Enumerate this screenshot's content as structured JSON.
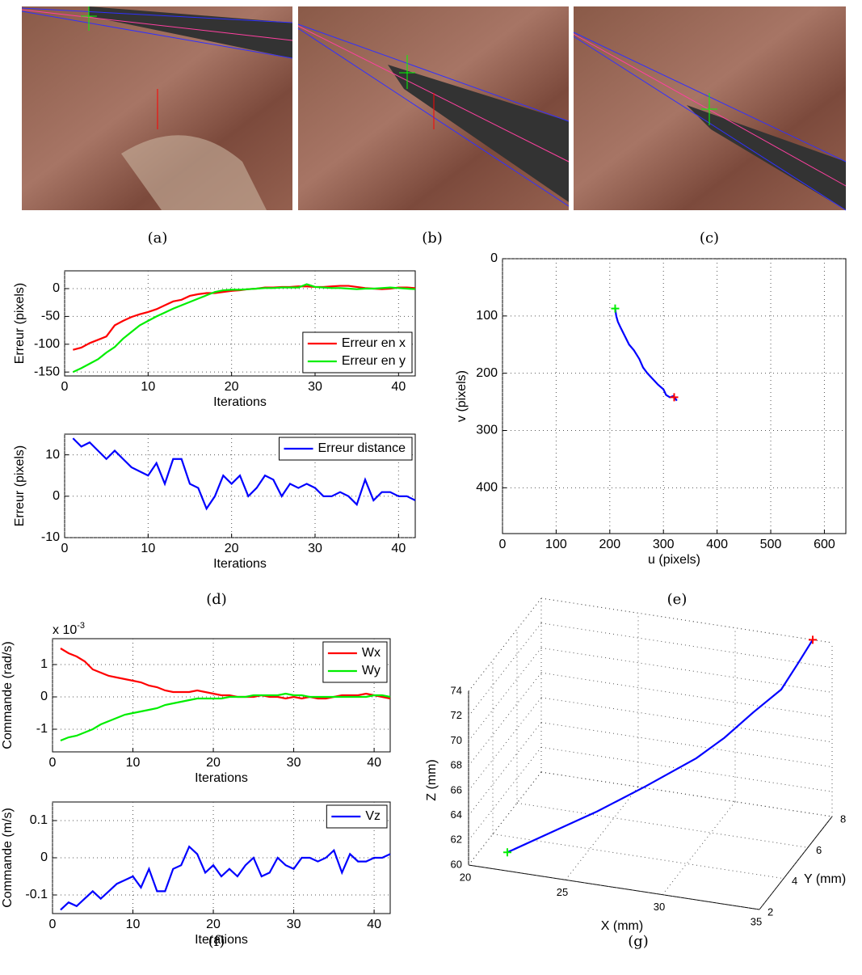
{
  "captions": [
    "(a)",
    "(b)",
    "(c)",
    "(d)",
    "(e)",
    "(f)",
    "(g)"
  ],
  "chart_data": [
    {
      "type": "line",
      "xlabel": "Iterations",
      "ylabel": "Erreur (pixels)",
      "grid": true,
      "legend": "lower right",
      "xlim": [
        0,
        42
      ],
      "ylim": [
        -157,
        32
      ],
      "xticks": [
        0,
        10,
        20,
        30,
        40
      ],
      "yticks": [
        -150,
        -100,
        -50,
        0
      ],
      "x": [
        1,
        2,
        3,
        4,
        5,
        6,
        7,
        8,
        9,
        10,
        11,
        12,
        13,
        14,
        15,
        16,
        17,
        18,
        19,
        20,
        21,
        22,
        23,
        24,
        25,
        26,
        27,
        28,
        29,
        30,
        31,
        32,
        33,
        34,
        35,
        36,
        37,
        38,
        39,
        40,
        41,
        42
      ],
      "series": [
        {
          "name": "Erreur en x",
          "color": "#ff0000",
          "values": [
            -110,
            -106,
            -98,
            -92,
            -86,
            -66,
            -58,
            -51,
            -46,
            -42,
            -37,
            -30,
            -23,
            -20,
            -13,
            -10,
            -8,
            -8,
            -6,
            -4,
            -3,
            -1,
            0,
            2,
            2,
            3,
            3,
            4,
            4,
            3,
            3,
            4,
            5,
            5,
            3,
            1,
            0,
            -1,
            0,
            2,
            2,
            1
          ]
        },
        {
          "name": "Erreur en y",
          "color": "#00ee00",
          "values": [
            -150,
            -143,
            -135,
            -127,
            -115,
            -105,
            -90,
            -78,
            -66,
            -58,
            -50,
            -43,
            -36,
            -30,
            -24,
            -18,
            -12,
            -6,
            -3,
            -2,
            -2,
            -1,
            0,
            1,
            1,
            2,
            2,
            2,
            8,
            3,
            2,
            1,
            1,
            0,
            -1,
            0,
            0,
            1,
            2,
            1,
            0,
            -1
          ]
        }
      ]
    },
    {
      "type": "line",
      "xlabel": "Iterations",
      "ylabel": "Erreur (pixels)",
      "grid": true,
      "legend": "upper right",
      "xlim": [
        0,
        42
      ],
      "ylim": [
        -10,
        15
      ],
      "xticks": [
        0,
        10,
        20,
        30,
        40
      ],
      "yticks": [
        -10,
        0,
        10
      ],
      "x": [
        1,
        2,
        3,
        4,
        5,
        6,
        7,
        8,
        9,
        10,
        11,
        12,
        13,
        14,
        15,
        16,
        17,
        18,
        19,
        20,
        21,
        22,
        23,
        24,
        25,
        26,
        27,
        28,
        29,
        30,
        31,
        32,
        33,
        34,
        35,
        36,
        37,
        38,
        39,
        40,
        41,
        42
      ],
      "series": [
        {
          "name": "Erreur distance",
          "color": "#0000ff",
          "values": [
            14,
            12,
            13,
            11,
            9,
            11,
            9,
            7,
            6,
            5,
            8,
            3,
            9,
            9,
            3,
            2,
            -3,
            0,
            5,
            3,
            5,
            0,
            2,
            5,
            4,
            0,
            3,
            2,
            3,
            2,
            0,
            0,
            1,
            0,
            -2,
            4,
            -1,
            1,
            1,
            0,
            0,
            -1
          ]
        }
      ]
    },
    {
      "type": "line",
      "xlabel": "u (pixels)",
      "ylabel": "v (pixels)",
      "grid": true,
      "y_inverted": true,
      "xlim": [
        0,
        640
      ],
      "ylim": [
        0,
        480
      ],
      "xticks": [
        0,
        100,
        200,
        300,
        400,
        500,
        600
      ],
      "yticks": [
        0,
        100,
        200,
        300,
        400
      ],
      "series": [
        {
          "color": "#0000ff",
          "x": [
            210,
            212,
            215,
            220,
            228,
            236,
            245,
            255,
            262,
            270,
            280,
            290,
            300,
            305,
            312,
            318,
            322,
            325
          ],
          "values": [
            87,
            100,
            110,
            120,
            135,
            150,
            160,
            175,
            190,
            200,
            210,
            220,
            228,
            238,
            242,
            240,
            244,
            248
          ]
        }
      ],
      "markers": [
        {
          "x": 210,
          "y": 87,
          "color": "#00ee00"
        },
        {
          "x": 320,
          "y": 242,
          "color": "#ff0000"
        }
      ]
    },
    {
      "type": "line",
      "xlabel": "Iterations",
      "ylabel": "Commande (rad/s)",
      "grid": true,
      "legend": "upper right",
      "scale_label": "x 10",
      "scale_exponent": "-3",
      "xlim": [
        0,
        42
      ],
      "ylim": [
        -1.7,
        1.8
      ],
      "xticks": [
        0,
        10,
        20,
        30,
        40
      ],
      "yticks": [
        -1,
        0,
        1
      ],
      "x": [
        1,
        2,
        3,
        4,
        5,
        6,
        7,
        8,
        9,
        10,
        11,
        12,
        13,
        14,
        15,
        16,
        17,
        18,
        19,
        20,
        21,
        22,
        23,
        24,
        25,
        26,
        27,
        28,
        29,
        30,
        31,
        32,
        33,
        34,
        35,
        36,
        37,
        38,
        39,
        40,
        41,
        42
      ],
      "series": [
        {
          "name": "Wx",
          "color": "#ff0000",
          "values": [
            1.5,
            1.35,
            1.25,
            1.1,
            0.85,
            0.75,
            0.65,
            0.6,
            0.55,
            0.5,
            0.45,
            0.35,
            0.3,
            0.2,
            0.15,
            0.15,
            0.15,
            0.2,
            0.15,
            0.1,
            0.05,
            0.05,
            0,
            0,
            0,
            0.05,
            0,
            0,
            -0.05,
            0,
            -0.05,
            0,
            -0.05,
            -0.05,
            0,
            0.05,
            0.05,
            0.05,
            0.1,
            0.05,
            0,
            -0.05
          ]
        },
        {
          "name": "Wy",
          "color": "#00ee00",
          "values": [
            -1.35,
            -1.25,
            -1.2,
            -1.1,
            -1.0,
            -0.85,
            -0.75,
            -0.65,
            -0.55,
            -0.5,
            -0.45,
            -0.4,
            -0.35,
            -0.25,
            -0.2,
            -0.15,
            -0.1,
            -0.05,
            -0.05,
            -0.05,
            -0.05,
            0,
            0,
            0,
            0.05,
            0.05,
            0.05,
            0.05,
            0.1,
            0.05,
            0.05,
            0,
            0,
            0,
            0,
            0,
            0,
            0,
            0,
            0.05,
            0.05,
            0
          ]
        }
      ]
    },
    {
      "type": "line",
      "xlabel": "Iterations",
      "ylabel": "Commande (m/s)",
      "grid": true,
      "legend": "upper right",
      "xlim": [
        0,
        42
      ],
      "ylim": [
        -0.15,
        0.15
      ],
      "xticks": [
        0,
        10,
        20,
        30,
        40
      ],
      "yticks": [
        -0.1,
        0,
        0.1
      ],
      "x": [
        1,
        2,
        3,
        4,
        5,
        6,
        7,
        8,
        9,
        10,
        11,
        12,
        13,
        14,
        15,
        16,
        17,
        18,
        19,
        20,
        21,
        22,
        23,
        24,
        25,
        26,
        27,
        28,
        29,
        30,
        31,
        32,
        33,
        34,
        35,
        36,
        37,
        38,
        39,
        40,
        41,
        42
      ],
      "series": [
        {
          "name": "Vz",
          "color": "#0000ff",
          "values": [
            -0.14,
            -0.12,
            -0.13,
            -0.11,
            -0.09,
            -0.11,
            -0.09,
            -0.07,
            -0.06,
            -0.05,
            -0.08,
            -0.03,
            -0.09,
            -0.09,
            -0.03,
            -0.02,
            0.03,
            0.01,
            -0.04,
            -0.02,
            -0.05,
            -0.03,
            -0.05,
            -0.02,
            0,
            -0.05,
            -0.04,
            0,
            -0.02,
            -0.03,
            0,
            0,
            -0.01,
            0,
            0.02,
            -0.04,
            0.01,
            -0.01,
            -0.01,
            0,
            0,
            0.01
          ]
        }
      ]
    },
    {
      "type": "line3d",
      "xlabel": "X (mm)",
      "ylabel": "Y (mm)",
      "zlabel": "Z (mm)",
      "grid": true,
      "xlim": [
        20,
        35
      ],
      "ylim": [
        2,
        8
      ],
      "zlim": [
        60,
        74
      ],
      "xticks": [
        20,
        25,
        30,
        35
      ],
      "yticks": [
        2,
        4,
        6,
        8
      ],
      "zticks": [
        60,
        62,
        64,
        66,
        68,
        70,
        72,
        74
      ],
      "series": [
        {
          "color": "#0000ff",
          "x": [
            22,
            24,
            26,
            28,
            30,
            31,
            32,
            33,
            33.5,
            34
          ],
          "y": [
            2,
            2.5,
            3,
            3.8,
            4.8,
            5.5,
            6.3,
            7,
            7.6,
            8
          ],
          "z": [
            61.5,
            63,
            64.5,
            66,
            67.5,
            68.5,
            69.8,
            71,
            72.5,
            74
          ]
        }
      ],
      "markers": [
        {
          "x": 22,
          "y": 2,
          "z": 61.5,
          "color": "#00ee00"
        },
        {
          "x": 34,
          "y": 8,
          "z": 74,
          "color": "#ff0000"
        }
      ]
    }
  ]
}
